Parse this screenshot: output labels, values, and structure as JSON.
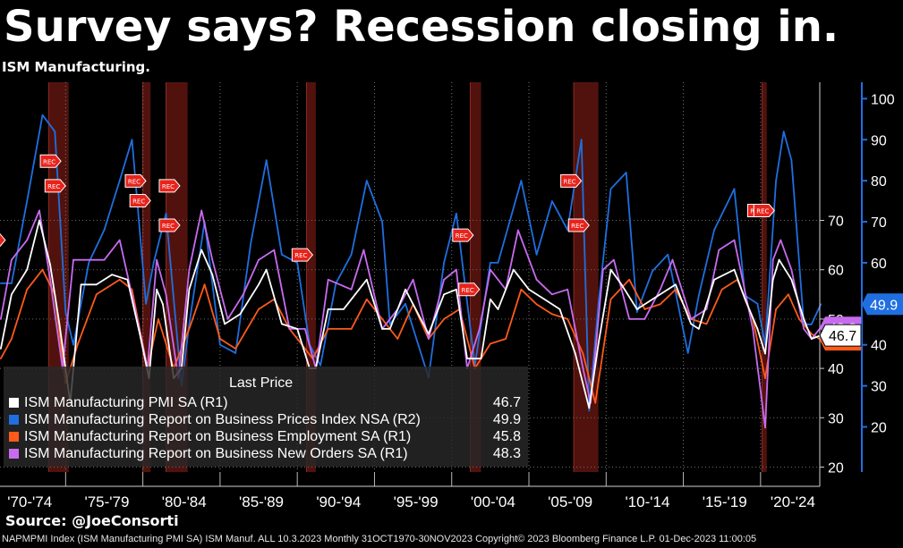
{
  "title": "Survey says? Recession closing in.",
  "subtitle": "ISM Manufacturing.",
  "source": "Source: @JoeConsorti",
  "footer": "NAPMPMI Index (ISM Manufacturing PMI SA) ISM Manuf. ALL 10.3.2023  Monthly 31OCT1970-30NOV2023  Copyright© 2023 Bloomberg Finance L.P.  01-Dec-2023 11:00:05",
  "legend": {
    "header": "Last Price",
    "items": [
      {
        "label": "ISM Manufacturing PMI SA  (R1)",
        "value": "46.7",
        "color": "#ffffff"
      },
      {
        "label": "ISM Manufacturing Report on Business Prices Index NSA  (R2)",
        "value": "49.9",
        "color": "#1f6fe0"
      },
      {
        "label": "ISM Manufacturing Report on Business Employment SA  (R1)",
        "value": "45.8",
        "color": "#ff5a1a"
      },
      {
        "label": "ISM Manufacturing Report on Business New Orders SA  (R1)",
        "value": "48.3",
        "color": "#c86bf0"
      }
    ]
  },
  "chart_data": {
    "type": "line",
    "x_range": [
      "1970-10",
      "2023-11"
    ],
    "x_tick_labels": [
      "'70-'74",
      "'75-'79",
      "'80-'84",
      "'85-'89",
      "'90-'94",
      "'95-'99",
      "'00-'04",
      "'05-'09",
      "'10-'14",
      "'15-'19",
      "'20-'24"
    ],
    "y_left": {
      "ticks": [
        20,
        30,
        40,
        50,
        60,
        70
      ],
      "range": [
        19,
        98
      ]
    },
    "y_right": {
      "ticks": [
        20,
        30,
        40,
        50,
        60,
        70,
        80,
        90,
        100
      ],
      "range": [
        9,
        104
      ]
    },
    "grid": true,
    "legend_position": "bottom-left",
    "last_value_labels": [
      {
        "text": "46.7",
        "color": "#ffffff",
        "axis": "left",
        "value": 46.7
      },
      {
        "text": "49.9",
        "color": "#1f6fe0",
        "axis": "right",
        "value": 49.9
      },
      {
        "text": "48.3",
        "color": "#c86bf0",
        "axis": "left",
        "value": 48.3
      },
      {
        "text": "45.8",
        "color": "#ff5a1a",
        "axis": "left",
        "value": 45.8
      }
    ],
    "recessions": [
      {
        "start": 1973.9,
        "end": 1975.2
      },
      {
        "start": 1980.0,
        "end": 1980.5
      },
      {
        "start": 1981.5,
        "end": 1982.9
      },
      {
        "start": 1990.6,
        "end": 1991.2
      },
      {
        "start": 2001.2,
        "end": 2001.9
      },
      {
        "start": 2007.9,
        "end": 2009.5
      },
      {
        "start": 2020.1,
        "end": 2020.4
      }
    ],
    "rec_markers": [
      {
        "label": "REC",
        "year": 1970.4,
        "value": 66
      },
      {
        "label": "REC",
        "year": 1974.0,
        "value": 82
      },
      {
        "label": "REC",
        "year": 1974.3,
        "value": 77
      },
      {
        "label": "REC",
        "year": 1979.5,
        "value": 78
      },
      {
        "label": "REC",
        "year": 1979.8,
        "value": 74
      },
      {
        "label": "REC",
        "year": 1981.7,
        "value": 77
      },
      {
        "label": "REC",
        "year": 1981.7,
        "value": 69
      },
      {
        "label": "REC",
        "year": 1990.3,
        "value": 63
      },
      {
        "label": "REC",
        "year": 2000.7,
        "value": 67
      },
      {
        "label": "REC",
        "year": 2001.1,
        "value": 56
      },
      {
        "label": "REC",
        "year": 2007.7,
        "value": 78
      },
      {
        "label": "REC",
        "year": 2008.2,
        "value": 69
      },
      {
        "label": "REC",
        "year": 2019.8,
        "value": 72
      },
      {
        "label": "REC",
        "year": 2020.2,
        "value": 72
      }
    ],
    "series": [
      {
        "name": "ISM Manufacturing PMI SA",
        "axis": "left",
        "color": "#ffffff",
        "x": [
          1970.8,
          1971.5,
          1972.5,
          1973.3,
          1974.0,
          1974.6,
          1975.3,
          1976.0,
          1977.0,
          1978.0,
          1979.0,
          1979.8,
          1980.4,
          1980.9,
          1981.3,
          1982.0,
          1982.5,
          1983.0,
          1983.8,
          1984.5,
          1985.3,
          1986.3,
          1987.5,
          1988.0,
          1989.0,
          1990.0,
          1990.8,
          1991.2,
          1992.0,
          1993.0,
          1994.5,
          1995.5,
          1996.0,
          1997.0,
          1998.5,
          1999.5,
          2000.3,
          2001.0,
          2001.9,
          2002.5,
          2003.0,
          2004.0,
          2005.0,
          2006.0,
          2007.0,
          2008.0,
          2008.9,
          2009.5,
          2010.3,
          2011.0,
          2012.0,
          2013.0,
          2014.5,
          2015.5,
          2016.0,
          2017.0,
          2018.3,
          2019.0,
          2019.8,
          2020.3,
          2020.8,
          2021.2,
          2022.0,
          2022.8,
          2023.3,
          2023.9
        ],
        "y": [
          44,
          55,
          60,
          70,
          61,
          49,
          33,
          57,
          57,
          59,
          58,
          47,
          38,
          56,
          53,
          38,
          40,
          56,
          64,
          59,
          49,
          51,
          57,
          60,
          49,
          48,
          40,
          40,
          52,
          52,
          58,
          48,
          48,
          56,
          47,
          55,
          56,
          42,
          42,
          54,
          52,
          60,
          56,
          54,
          52,
          43,
          32,
          45,
          60,
          57,
          52,
          54,
          57,
          49,
          48,
          58,
          60,
          54,
          48,
          43,
          58,
          62,
          58,
          50,
          46,
          46.7
        ]
      },
      {
        "name": "ISM Manufacturing Report on Business Prices Index NSA",
        "axis": "right",
        "color": "#1f6fe0",
        "x": [
          1970.8,
          1971.5,
          1972.5,
          1973.5,
          1974.3,
          1975.0,
          1975.5,
          1976.5,
          1977.5,
          1978.5,
          1979.3,
          1980.2,
          1980.7,
          1981.5,
          1982.5,
          1983.0,
          1984.0,
          1985.0,
          1986.0,
          1987.0,
          1988.0,
          1989.0,
          1990.0,
          1990.8,
          1991.5,
          1992.5,
          1993.5,
          1994.5,
          1995.5,
          1996.0,
          1997.0,
          1998.5,
          1999.5,
          2000.3,
          2001.5,
          2002.5,
          2003.0,
          2004.5,
          2005.5,
          2006.5,
          2007.5,
          2008.4,
          2008.9,
          2009.5,
          2010.3,
          2011.3,
          2012.0,
          2013.0,
          2014.0,
          2015.3,
          2016.0,
          2017.0,
          2018.3,
          2019.0,
          2019.8,
          2020.3,
          2021.0,
          2021.5,
          2022.0,
          2022.8,
          2023.3,
          2023.9
        ],
        "y": [
          55,
          55,
          75,
          96,
          92,
          48,
          40,
          60,
          68,
          80,
          90,
          50,
          60,
          72,
          30,
          45,
          70,
          40,
          38,
          65,
          85,
          62,
          60,
          40,
          35,
          55,
          62,
          80,
          70,
          45,
          50,
          32,
          60,
          72,
          35,
          60,
          60,
          80,
          62,
          75,
          68,
          90,
          24,
          50,
          78,
          82,
          48,
          58,
          62,
          38,
          52,
          68,
          78,
          52,
          50,
          40,
          80,
          92,
          85,
          45,
          45,
          49.9
        ]
      },
      {
        "name": "ISM Manufacturing Report on Business Employment SA",
        "axis": "left",
        "color": "#ff5a1a",
        "x": [
          1970.8,
          1971.5,
          1972.5,
          1973.5,
          1974.3,
          1975.0,
          1975.8,
          1977.0,
          1978.5,
          1979.3,
          1980.3,
          1981.0,
          1982.0,
          1983.0,
          1984.0,
          1985.0,
          1986.0,
          1987.5,
          1988.5,
          1989.5,
          1990.5,
          1991.0,
          1992.0,
          1993.5,
          1994.5,
          1995.5,
          1996.5,
          1997.5,
          1998.5,
          1999.5,
          2000.5,
          2001.5,
          2002.5,
          2003.5,
          2004.5,
          2005.5,
          2006.5,
          2007.5,
          2008.5,
          2009.3,
          2010.3,
          2011.5,
          2012.5,
          2013.5,
          2014.5,
          2015.5,
          2016.5,
          2017.5,
          2018.5,
          2019.5,
          2020.3,
          2021.0,
          2021.8,
          2022.5,
          2023.3,
          2023.9
        ],
        "y": [
          42,
          46,
          56,
          60,
          55,
          37,
          45,
          55,
          58,
          56,
          40,
          50,
          40,
          48,
          57,
          46,
          44,
          52,
          54,
          48,
          44,
          42,
          48,
          48,
          54,
          50,
          46,
          53,
          46,
          50,
          52,
          40,
          45,
          46,
          56,
          53,
          51,
          50,
          43,
          33,
          54,
          58,
          52,
          53,
          56,
          50,
          49,
          56,
          58,
          50,
          38,
          52,
          55,
          50,
          47,
          45.8
        ]
      },
      {
        "name": "ISM Manufacturing Report on Business New Orders SA",
        "axis": "left",
        "color": "#c86bf0",
        "x": [
          1970.8,
          1971.5,
          1972.5,
          1973.3,
          1974.0,
          1974.8,
          1975.5,
          1976.5,
          1977.5,
          1978.5,
          1979.5,
          1980.3,
          1980.9,
          1981.5,
          1982.3,
          1983.0,
          1983.8,
          1984.5,
          1985.5,
          1986.5,
          1987.5,
          1988.5,
          1989.5,
          1990.5,
          1991.2,
          1992.0,
          1993.5,
          1994.3,
          1995.5,
          1996.5,
          1997.5,
          1998.5,
          1999.5,
          2000.3,
          2001.0,
          2001.8,
          2002.5,
          2003.5,
          2004.3,
          2005.5,
          2006.5,
          2007.5,
          2008.5,
          2009.0,
          2009.8,
          2010.5,
          2011.5,
          2012.5,
          2013.5,
          2014.3,
          2015.5,
          2016.5,
          2017.3,
          2018.3,
          2019.5,
          2020.3,
          2020.8,
          2021.3,
          2022.0,
          2022.8,
          2023.3,
          2023.9
        ],
        "y": [
          50,
          62,
          66,
          72,
          58,
          40,
          62,
          62,
          62,
          66,
          52,
          40,
          62,
          55,
          38,
          60,
          72,
          62,
          50,
          55,
          62,
          64,
          48,
          48,
          40,
          58,
          56,
          64,
          48,
          52,
          58,
          46,
          58,
          60,
          40,
          48,
          60,
          56,
          68,
          58,
          55,
          56,
          40,
          33,
          60,
          62,
          50,
          50,
          56,
          62,
          50,
          52,
          64,
          66,
          48,
          28,
          62,
          66,
          60,
          48,
          46,
          48.3
        ]
      }
    ]
  }
}
